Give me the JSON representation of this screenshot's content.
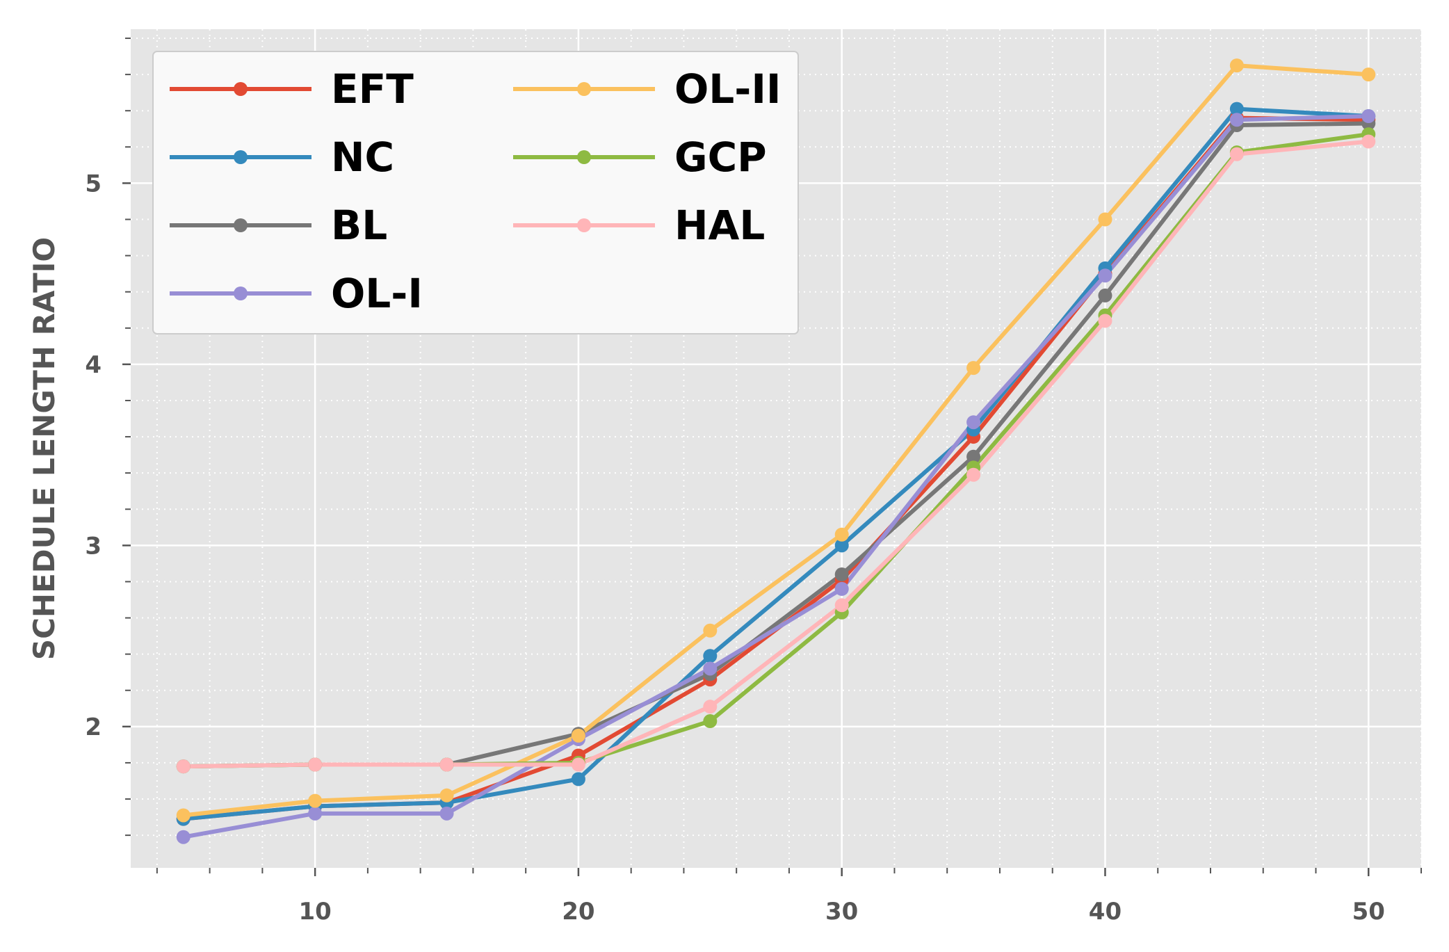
{
  "chart_data": {
    "type": "line",
    "title": "",
    "xlabel": "",
    "ylabel": "SCHEDULE LENGTH RATIO",
    "x": [
      5,
      10,
      15,
      20,
      25,
      30,
      35,
      40,
      45,
      50
    ],
    "xlim": [
      3,
      52
    ],
    "ylim": [
      1.22,
      5.85
    ],
    "xticks": [
      10,
      20,
      30,
      40,
      50
    ],
    "yticks": [
      2,
      3,
      4,
      5
    ],
    "grid": true,
    "legend_position": "top-left",
    "series": [
      {
        "name": "EFT",
        "color": "#E24A33",
        "values": [
          1.49,
          1.56,
          1.58,
          1.84,
          2.26,
          2.81,
          3.6,
          4.5,
          5.36,
          5.35
        ]
      },
      {
        "name": "NC",
        "color": "#348ABD",
        "values": [
          1.49,
          1.56,
          1.58,
          1.71,
          2.39,
          3.0,
          3.64,
          4.53,
          5.41,
          5.37
        ]
      },
      {
        "name": "BL",
        "color": "#777777",
        "values": [
          1.78,
          1.79,
          1.79,
          1.96,
          2.29,
          2.84,
          3.49,
          4.38,
          5.32,
          5.33
        ]
      },
      {
        "name": "OL-I",
        "color": "#988ED5",
        "values": [
          1.39,
          1.52,
          1.52,
          1.93,
          2.32,
          2.76,
          3.68,
          4.49,
          5.35,
          5.37
        ]
      },
      {
        "name": "OL-II",
        "color": "#FBC15E",
        "values": [
          1.51,
          1.59,
          1.62,
          1.95,
          2.53,
          3.06,
          3.98,
          4.8,
          5.65,
          5.6
        ]
      },
      {
        "name": "GCP",
        "color": "#8EBA42",
        "values": [
          1.78,
          1.79,
          1.79,
          1.8,
          2.03,
          2.63,
          3.43,
          4.27,
          5.17,
          5.27
        ]
      },
      {
        "name": "HAL",
        "color": "#FFB5B8",
        "values": [
          1.78,
          1.79,
          1.79,
          1.79,
          2.11,
          2.67,
          3.39,
          4.24,
          5.16,
          5.23
        ]
      }
    ]
  }
}
